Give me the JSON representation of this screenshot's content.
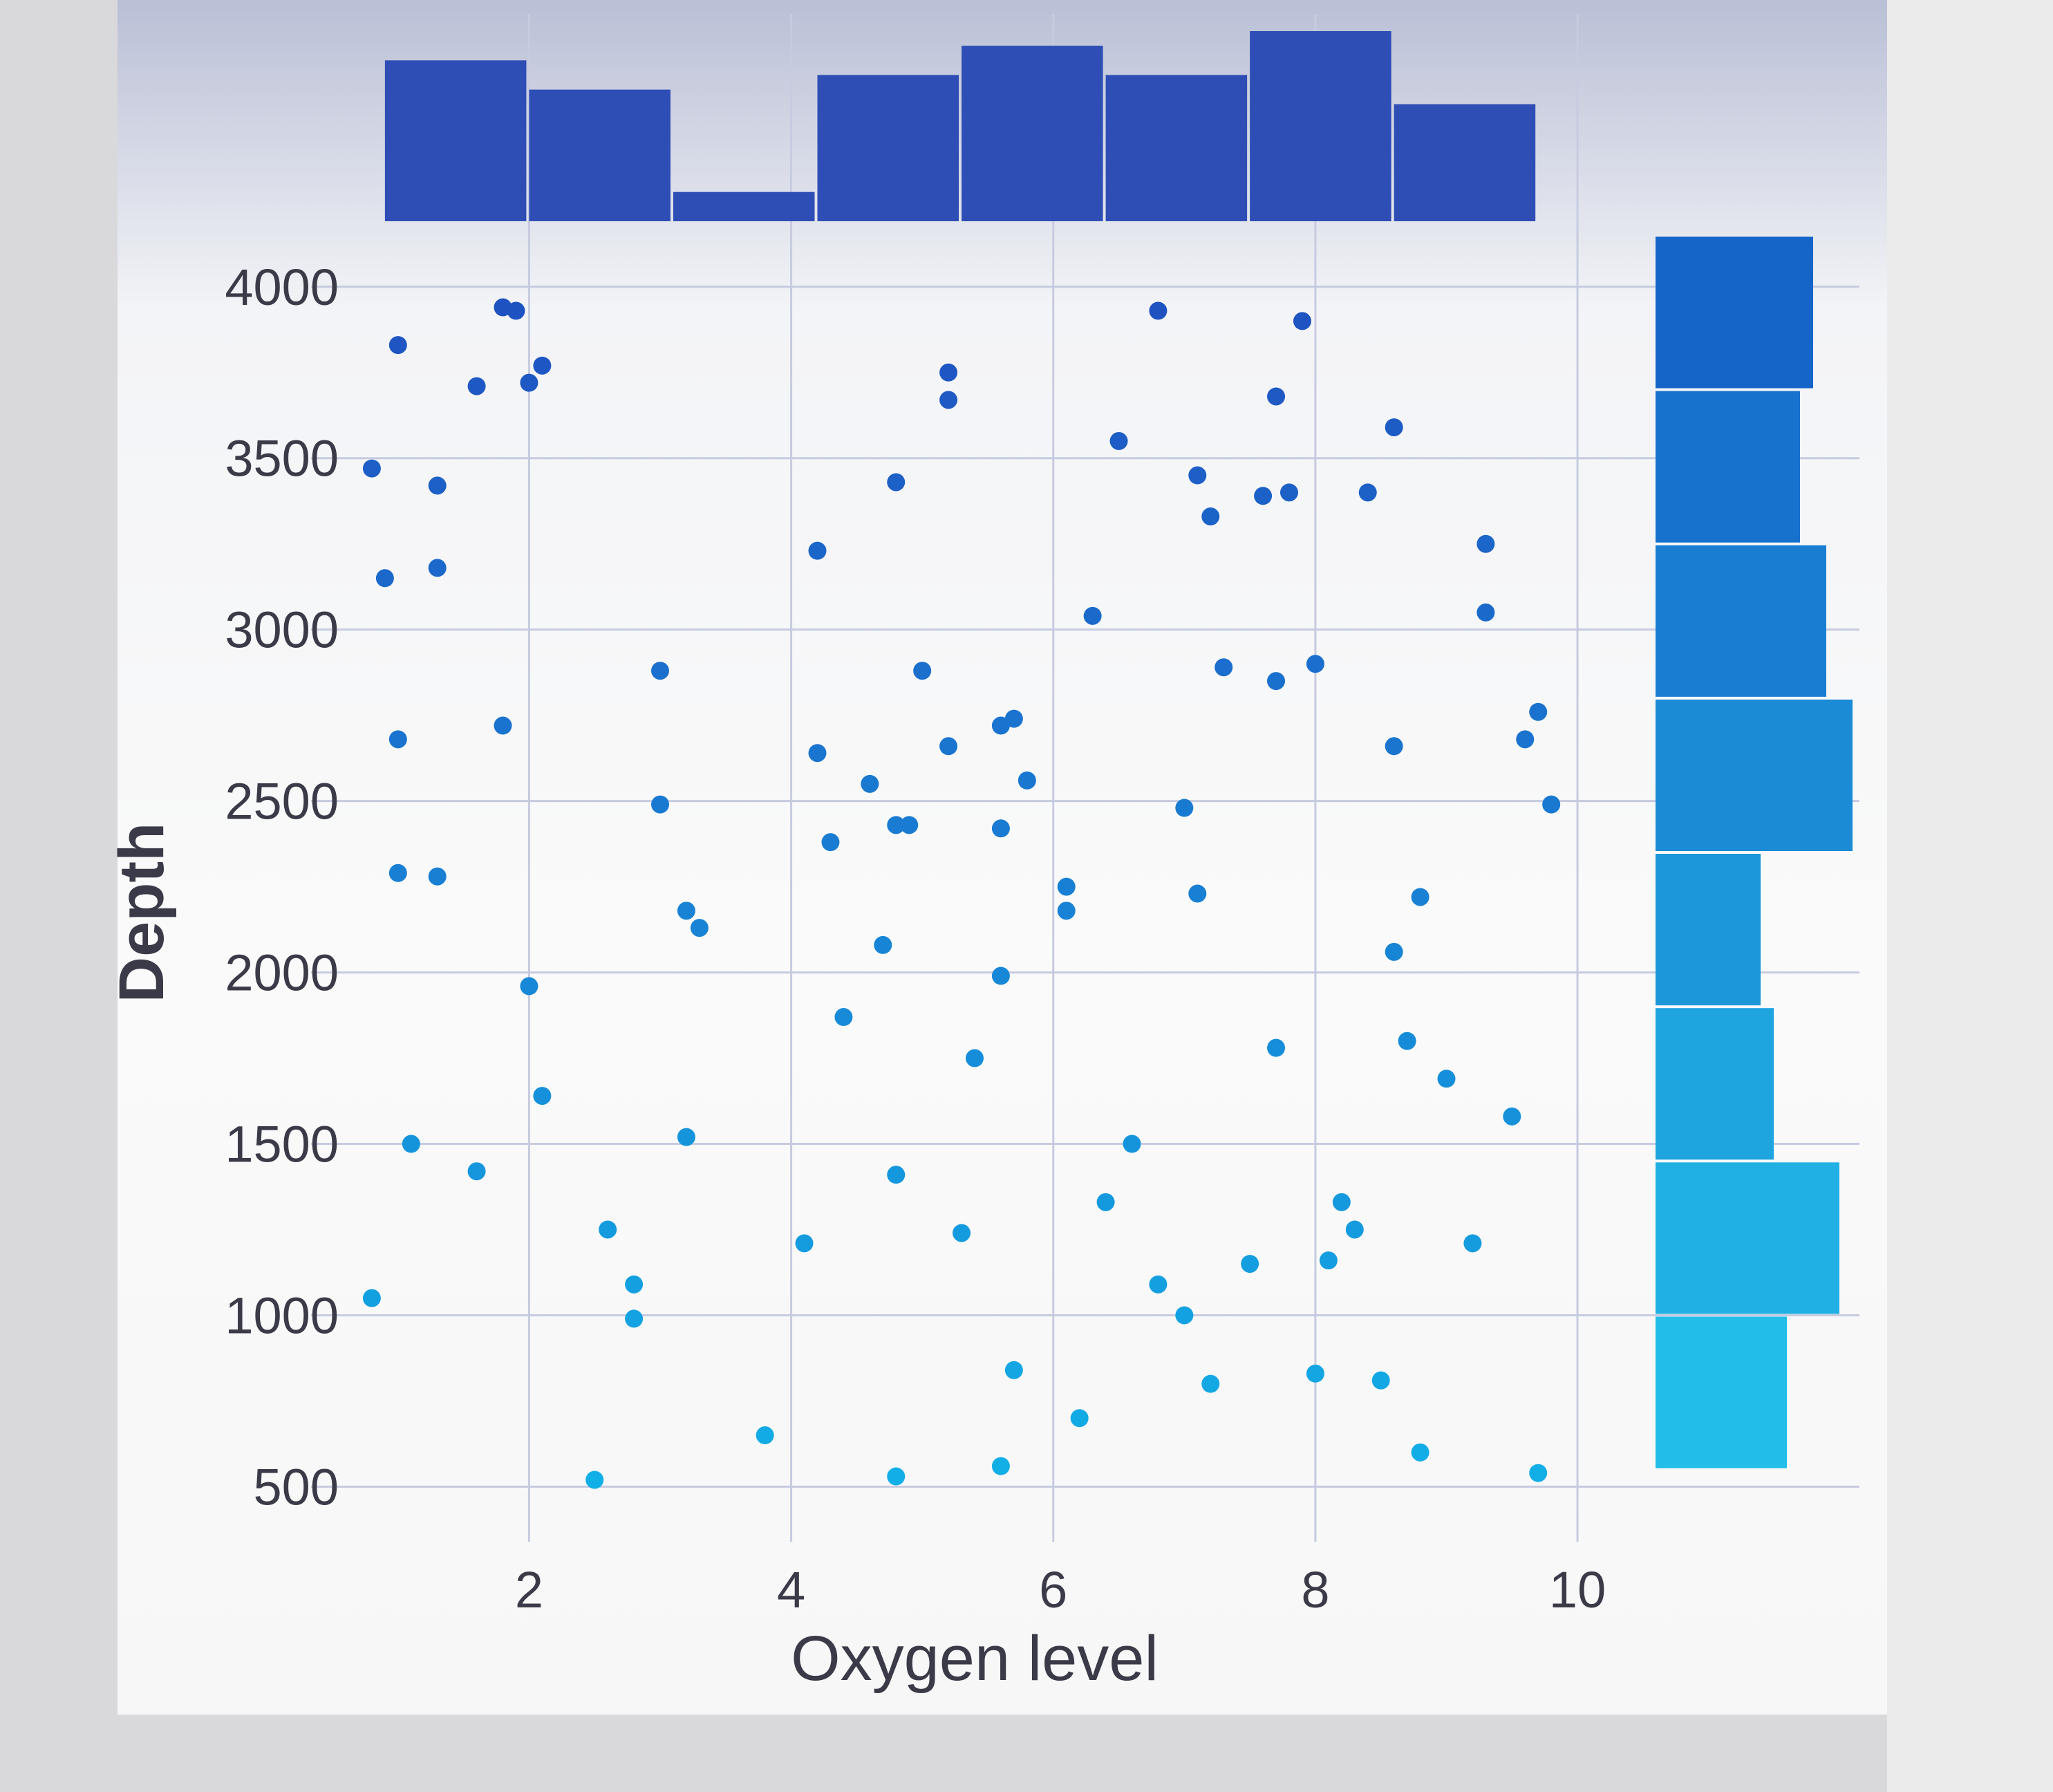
{
  "chart_data": {
    "type": "scatter",
    "title": "",
    "xlabel": "Oxygen level",
    "ylabel": "Depth",
    "xlim": [
      0.6,
      10.2
    ],
    "ylim": [
      400,
      4050
    ],
    "xticks": [
      2,
      4,
      6,
      8,
      10
    ],
    "yticks": [
      500,
      1000,
      1500,
      2000,
      2500,
      3000,
      3500,
      4000
    ],
    "grid": true,
    "colors": {
      "point_low": "#11b2e8",
      "point_high": "#1f4fc0",
      "hist_top": "#2e4db5",
      "hist_right_top": "#1565c8",
      "hist_right_bottom": "#22bde8",
      "grid": "#c7cbe0",
      "tick_text": "#3a3a48"
    },
    "points": [
      [
        0.8,
        3470
      ],
      [
        1.0,
        3830
      ],
      [
        1.6,
        3710
      ],
      [
        1.8,
        3940
      ],
      [
        1.9,
        3930
      ],
      [
        2.0,
        3720
      ],
      [
        2.1,
        3770
      ],
      [
        0.9,
        3150
      ],
      [
        1.3,
        3180
      ],
      [
        1.3,
        3420
      ],
      [
        1.0,
        2680
      ],
      [
        1.8,
        2720
      ],
      [
        1.0,
        2290
      ],
      [
        1.3,
        2280
      ],
      [
        2.0,
        1960
      ],
      [
        2.1,
        1640
      ],
      [
        1.1,
        1500
      ],
      [
        1.6,
        1420
      ],
      [
        0.8,
        1050
      ],
      [
        2.5,
        520
      ],
      [
        2.6,
        1250
      ],
      [
        2.8,
        1090
      ],
      [
        2.8,
        990
      ],
      [
        3.0,
        2880
      ],
      [
        3.0,
        2490
      ],
      [
        3.2,
        2180
      ],
      [
        3.3,
        2130
      ],
      [
        3.2,
        1520
      ],
      [
        3.8,
        650
      ],
      [
        4.1,
        1210
      ],
      [
        4.2,
        2640
      ],
      [
        4.2,
        3230
      ],
      [
        4.3,
        2380
      ],
      [
        4.4,
        1870
      ],
      [
        4.6,
        2550
      ],
      [
        4.7,
        2080
      ],
      [
        4.8,
        3430
      ],
      [
        4.8,
        2430
      ],
      [
        4.9,
        2430
      ],
      [
        4.8,
        1410
      ],
      [
        4.8,
        530
      ],
      [
        5.0,
        2880
      ],
      [
        5.2,
        2660
      ],
      [
        5.2,
        3750
      ],
      [
        5.2,
        3670
      ],
      [
        5.3,
        1240
      ],
      [
        5.4,
        1750
      ],
      [
        5.6,
        2720
      ],
      [
        5.7,
        2740
      ],
      [
        5.6,
        2420
      ],
      [
        5.6,
        1990
      ],
      [
        5.6,
        560
      ],
      [
        5.7,
        840
      ],
      [
        5.8,
        2560
      ],
      [
        6.1,
        2250
      ],
      [
        6.1,
        2180
      ],
      [
        6.2,
        700
      ],
      [
        6.3,
        3040
      ],
      [
        6.4,
        1330
      ],
      [
        6.5,
        3550
      ],
      [
        6.6,
        1500
      ],
      [
        6.8,
        3930
      ],
      [
        6.8,
        1090
      ],
      [
        7.0,
        2480
      ],
      [
        7.0,
        1000
      ],
      [
        7.1,
        3450
      ],
      [
        7.1,
        2230
      ],
      [
        7.2,
        3330
      ],
      [
        7.2,
        800
      ],
      [
        7.3,
        2890
      ],
      [
        7.5,
        1150
      ],
      [
        7.6,
        3390
      ],
      [
        7.7,
        3680
      ],
      [
        7.7,
        2850
      ],
      [
        7.7,
        1780
      ],
      [
        7.8,
        3400
      ],
      [
        7.9,
        3900
      ],
      [
        8.0,
        2900
      ],
      [
        8.0,
        830
      ],
      [
        8.1,
        1160
      ],
      [
        8.2,
        1330
      ],
      [
        8.3,
        1250
      ],
      [
        8.4,
        3400
      ],
      [
        8.5,
        810
      ],
      [
        8.6,
        3590
      ],
      [
        8.6,
        2660
      ],
      [
        8.6,
        2060
      ],
      [
        8.7,
        1800
      ],
      [
        8.8,
        2220
      ],
      [
        8.8,
        600
      ],
      [
        9.0,
        1690
      ],
      [
        9.2,
        1210
      ],
      [
        9.3,
        3250
      ],
      [
        9.3,
        3050
      ],
      [
        9.5,
        1580
      ],
      [
        9.6,
        2680
      ],
      [
        9.7,
        2760
      ],
      [
        9.7,
        540
      ],
      [
        9.8,
        2490
      ]
    ],
    "top_histogram": {
      "bin_edges": [
        0.9,
        2.0,
        3.1,
        4.2,
        5.3,
        6.4,
        7.5,
        8.6,
        9.7
      ],
      "counts": [
        11,
        9,
        2,
        10,
        12,
        10,
        13,
        8
      ]
    },
    "right_histogram": {
      "bin_edges": [
        550,
        1000,
        1450,
        1900,
        2350,
        2800,
        3250,
        3700,
        4150
      ],
      "counts": [
        10,
        14,
        9,
        8,
        15,
        13,
        11,
        12
      ]
    }
  }
}
